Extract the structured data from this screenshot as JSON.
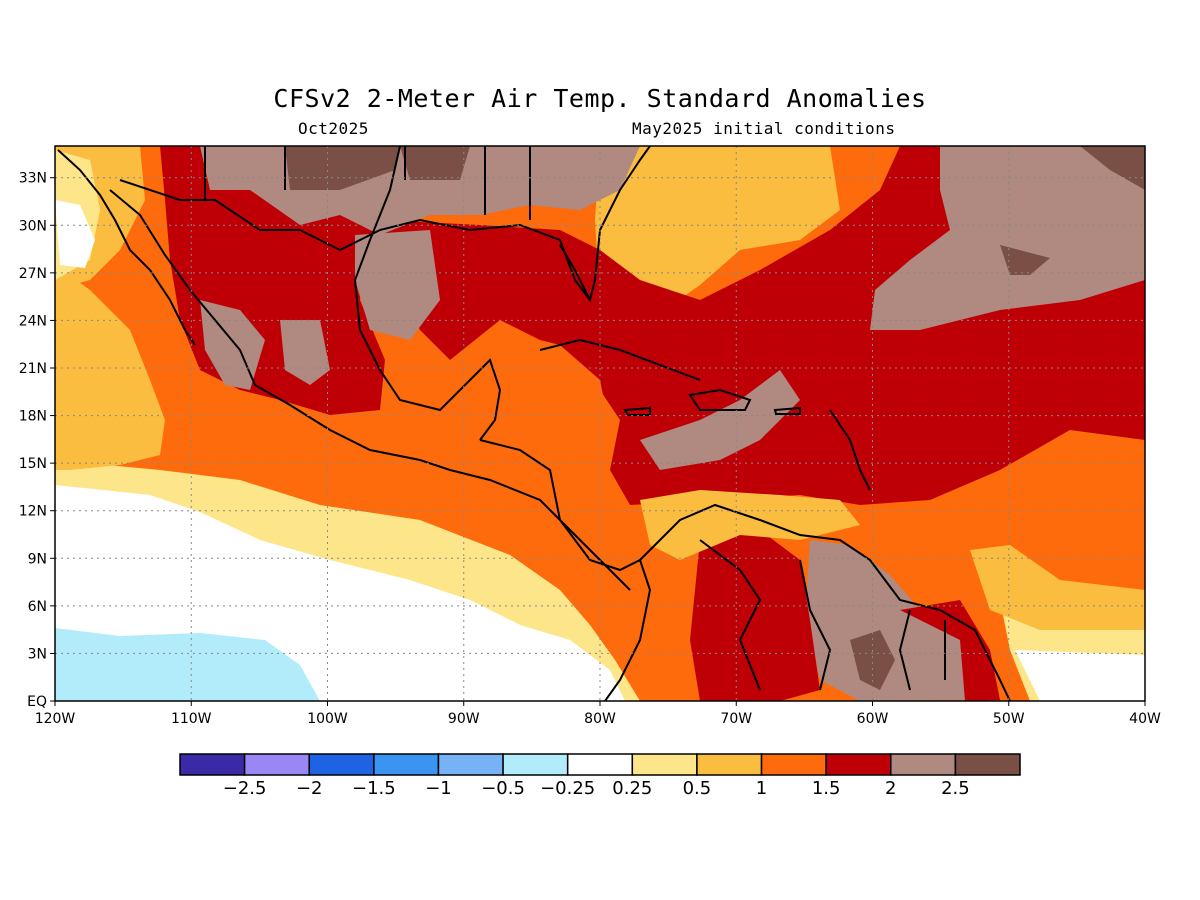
{
  "title": "CFSv2 2-Meter Air Temp. Standard Anomalies",
  "subtitle_left": "Oct2025",
  "subtitle_right": "May2025 initial conditions",
  "map": {
    "lon_range": [
      -120,
      -40
    ],
    "lat_range": [
      0,
      35
    ],
    "lat_ticks": [
      "EQ",
      "3N",
      "6N",
      "9N",
      "12N",
      "15N",
      "18N",
      "21N",
      "24N",
      "27N",
      "30N",
      "33N"
    ],
    "lon_ticks": [
      "120W",
      "110W",
      "100W",
      "90W",
      "80W",
      "70W",
      "60W",
      "50W",
      "40W"
    ],
    "grid": "dotted"
  },
  "colorbar": {
    "colors": [
      "#3a2aa8",
      "#9b86f5",
      "#1f63e5",
      "#3b93f2",
      "#76b2f5",
      "#b2ecfa",
      "#ffffff",
      "#fde68a",
      "#fbbd3f",
      "#fd6b0c",
      "#be0006",
      "#b08a80",
      "#7a4f45"
    ],
    "labels": [
      "-2.5",
      "-2",
      "-1.5",
      "-1",
      "-0.5",
      "-0.25",
      "0.25",
      "0.5",
      "1",
      "1.5",
      "2",
      "2.5"
    ]
  }
}
